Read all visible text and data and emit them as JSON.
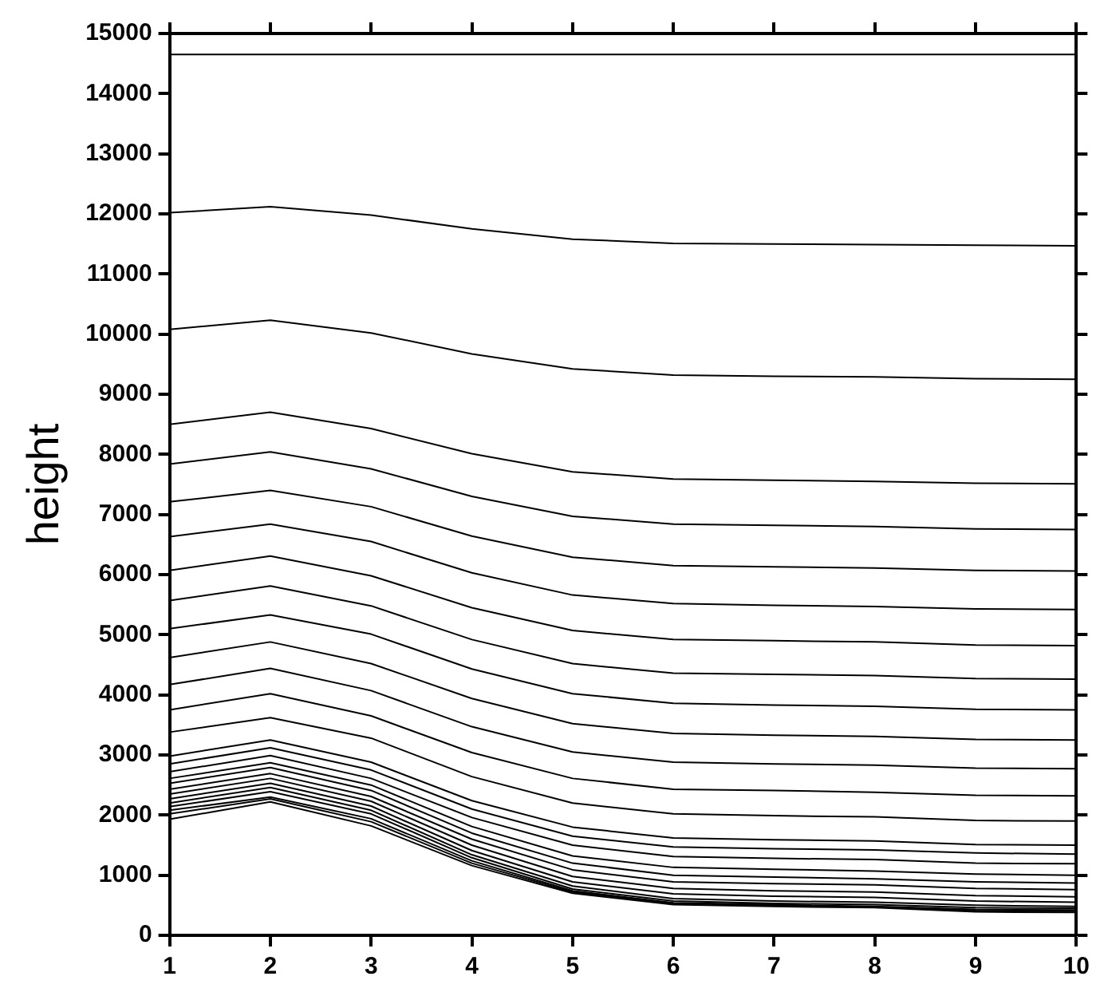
{
  "chart_data": {
    "type": "line",
    "ylabel": "height",
    "x": [
      1,
      2,
      3,
      4,
      5,
      6,
      7,
      8,
      9,
      10
    ],
    "xlim": [
      1,
      10
    ],
    "xticks": [
      1,
      2,
      3,
      4,
      5,
      6,
      7,
      8,
      9,
      10
    ],
    "ylim": [
      0,
      15000
    ],
    "yticks": [
      0,
      1000,
      2000,
      3000,
      4000,
      5000,
      6000,
      7000,
      8000,
      9000,
      10000,
      11000,
      12000,
      13000,
      14000,
      15000
    ],
    "grid": false,
    "legend": false,
    "marker": "none",
    "line_style": "solid",
    "series": [
      {
        "color": "#000000",
        "values": [
          14650,
          14650,
          14650,
          14650,
          14650,
          14650,
          14650,
          14650,
          14650,
          14650
        ]
      },
      {
        "color": "#000000",
        "values": [
          12020,
          12120,
          11980,
          11750,
          11580,
          11510,
          11500,
          11490,
          11480,
          11470
        ]
      },
      {
        "color": "#000000",
        "values": [
          10080,
          10230,
          10020,
          9670,
          9420,
          9320,
          9300,
          9290,
          9260,
          9250
        ]
      },
      {
        "color": "#000000",
        "values": [
          8500,
          8700,
          8430,
          8010,
          7710,
          7590,
          7570,
          7550,
          7520,
          7510
        ]
      },
      {
        "color": "#000000",
        "values": [
          7840,
          8040,
          7760,
          7300,
          6970,
          6840,
          6820,
          6800,
          6760,
          6750
        ]
      },
      {
        "color": "#000000",
        "values": [
          7210,
          7400,
          7130,
          6640,
          6290,
          6150,
          6130,
          6110,
          6070,
          6060
        ]
      },
      {
        "color": "#000000",
        "values": [
          6630,
          6840,
          6550,
          6030,
          5660,
          5520,
          5490,
          5470,
          5430,
          5420
        ]
      },
      {
        "color": "#000000",
        "values": [
          6070,
          6310,
          5980,
          5450,
          5070,
          4920,
          4900,
          4880,
          4830,
          4820
        ]
      },
      {
        "color": "#000000",
        "values": [
          5570,
          5810,
          5480,
          4920,
          4520,
          4360,
          4340,
          4320,
          4270,
          4260
        ]
      },
      {
        "color": "#000000",
        "values": [
          5100,
          5330,
          5010,
          4430,
          4020,
          3860,
          3830,
          3810,
          3760,
          3750
        ]
      },
      {
        "color": "#000000",
        "values": [
          4620,
          4880,
          4520,
          3940,
          3520,
          3360,
          3330,
          3310,
          3260,
          3250
        ]
      },
      {
        "color": "#000000",
        "values": [
          4170,
          4440,
          4070,
          3470,
          3050,
          2880,
          2850,
          2830,
          2780,
          2770
        ]
      },
      {
        "color": "#000000",
        "values": [
          3750,
          4020,
          3650,
          3040,
          2610,
          2430,
          2410,
          2380,
          2330,
          2320
        ]
      },
      {
        "color": "#000000",
        "values": [
          3380,
          3620,
          3280,
          2640,
          2200,
          2020,
          1990,
          1970,
          1910,
          1900
        ]
      },
      {
        "color": "#000000",
        "values": [
          2980,
          3250,
          2880,
          2240,
          1800,
          1620,
          1590,
          1570,
          1510,
          1500
        ]
      },
      {
        "color": "#000000",
        "values": [
          2850,
          3120,
          2750,
          2100,
          1650,
          1470,
          1440,
          1420,
          1370,
          1350
        ]
      },
      {
        "color": "#000000",
        "values": [
          2720,
          2990,
          2610,
          1960,
          1500,
          1310,
          1280,
          1260,
          1200,
          1190
        ]
      },
      {
        "color": "#000000",
        "values": [
          2610,
          2870,
          2500,
          1810,
          1320,
          1130,
          1100,
          1070,
          1020,
          1000
        ]
      },
      {
        "color": "#000000",
        "values": [
          2530,
          2790,
          2410,
          1700,
          1200,
          1000,
          970,
          940,
          890,
          870
        ]
      },
      {
        "color": "#000000",
        "values": [
          2430,
          2690,
          2310,
          1600,
          1090,
          890,
          860,
          840,
          780,
          760
        ]
      },
      {
        "color": "#000000",
        "values": [
          2350,
          2610,
          2230,
          1500,
          980,
          780,
          740,
          720,
          660,
          640
        ]
      },
      {
        "color": "#000000",
        "values": [
          2270,
          2530,
          2150,
          1410,
          890,
          690,
          650,
          630,
          570,
          550
        ]
      },
      {
        "color": "#000000",
        "values": [
          2200,
          2460,
          2080,
          1340,
          820,
          610,
          570,
          550,
          500,
          480
        ]
      },
      {
        "color": "#000000",
        "values": [
          2140,
          2390,
          2020,
          1290,
          770,
          570,
          530,
          510,
          460,
          450
        ]
      },
      {
        "color": "#000000",
        "values": [
          2080,
          2300,
          1940,
          1240,
          740,
          540,
          510,
          480,
          430,
          420
        ]
      },
      {
        "color": "#000000",
        "values": [
          2020,
          2270,
          1890,
          1200,
          720,
          530,
          500,
          470,
          410,
          400
        ]
      },
      {
        "color": "#000000",
        "values": [
          1930,
          2220,
          1820,
          1160,
          700,
          510,
          480,
          460,
          390,
          380
        ]
      }
    ]
  }
}
